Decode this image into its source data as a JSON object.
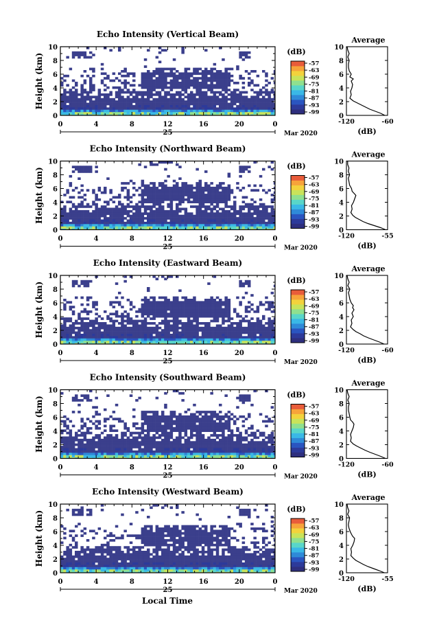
{
  "date_label": "Mar 2020",
  "xlabel": "Local Time",
  "colorbar_unit": "(dB)",
  "profile_title": "Average",
  "profile_unit": "(dB)",
  "ylabel": "Height (km)",
  "colors": {
    "echo_fill": "#3b3f8c",
    "background": "#ffffff",
    "colormap": [
      "#2e2f7e",
      "#2d3a9a",
      "#2a55c0",
      "#2f8ad8",
      "#3ab8e6",
      "#59d6c9",
      "#8fe08f",
      "#c9e35a",
      "#f3d23c",
      "#f7a33a",
      "#e85c3a"
    ]
  },
  "chart_data": [
    {
      "type": "heatmap",
      "title": "Echo Intensity (Vertical Beam)",
      "x_ticks": [
        "0",
        "4",
        "8",
        "12",
        "16",
        "20",
        "0"
      ],
      "day_label": "25",
      "xlim": [
        0,
        24
      ],
      "ylim": [
        0,
        10
      ],
      "y_ticks": [
        "0",
        "2",
        "4",
        "6",
        "8",
        "10"
      ],
      "colorbar_ticks": [
        "-57",
        "-63",
        "-69",
        "-75",
        "-81",
        "-87",
        "-93",
        "-99"
      ],
      "profile": {
        "title": "Average",
        "xlim": [
          -120,
          -60
        ],
        "x_ticks": [
          "-120",
          "-60"
        ],
        "y_ticks": [
          "0",
          "2",
          "4",
          "6",
          "8",
          "10"
        ],
        "heights": [
          0,
          0.3,
          0.6,
          0.9,
          1.2,
          1.5,
          1.8,
          2.1,
          2.5,
          3,
          3.5,
          4,
          4.5,
          5,
          5.3,
          5.6,
          6,
          6.5,
          7,
          7.5,
          8,
          8.5,
          9,
          9.5,
          10
        ],
        "values": [
          -64,
          -70,
          -78,
          -86,
          -92,
          -98,
          -104,
          -110,
          -115,
          -113,
          -114,
          -112,
          -111,
          -113,
          -110,
          -115,
          -113,
          -116,
          -117,
          -117,
          -116,
          -118,
          -116,
          -118,
          -119
        ]
      }
    },
    {
      "type": "heatmap",
      "title": "Echo Intensity (Northward Beam)",
      "x_ticks": [
        "0",
        "4",
        "8",
        "12",
        "16",
        "20",
        "0"
      ],
      "day_label": "25",
      "xlim": [
        0,
        24
      ],
      "ylim": [
        0,
        10
      ],
      "y_ticks": [
        "0",
        "2",
        "4",
        "6",
        "8",
        "10"
      ],
      "colorbar_ticks": [
        "-57",
        "-63",
        "-69",
        "-75",
        "-81",
        "-87",
        "-93",
        "-99"
      ],
      "profile": {
        "title": "Average",
        "xlim": [
          -120,
          -55
        ],
        "x_ticks": [
          "-120",
          "-55"
        ],
        "y_ticks": [
          "0",
          "2",
          "4",
          "6",
          "8",
          "10"
        ],
        "heights": [
          0,
          0.3,
          0.6,
          0.9,
          1.2,
          1.5,
          1.8,
          2.1,
          2.5,
          3,
          3.5,
          4,
          4.5,
          5,
          5.3,
          5.6,
          6,
          6.5,
          7,
          7.5,
          8,
          8.5,
          9,
          9.5,
          10
        ],
        "values": [
          -58,
          -66,
          -76,
          -86,
          -94,
          -100,
          -106,
          -110,
          -113,
          -111,
          -112,
          -109,
          -107,
          -105,
          -108,
          -111,
          -112,
          -115,
          -116,
          -117,
          -115,
          -117,
          -116,
          -118,
          -118
        ]
      }
    },
    {
      "type": "heatmap",
      "title": "Echo Intensity (Eastward Beam)",
      "x_ticks": [
        "0",
        "4",
        "8",
        "12",
        "16",
        "20",
        "0"
      ],
      "day_label": "25",
      "xlim": [
        0,
        24
      ],
      "ylim": [
        0,
        10
      ],
      "y_ticks": [
        "0",
        "2",
        "4",
        "6",
        "8",
        "10"
      ],
      "colorbar_ticks": [
        "-57",
        "-63",
        "-69",
        "-75",
        "-81",
        "-87",
        "-93",
        "-99"
      ],
      "profile": {
        "title": "Average",
        "xlim": [
          -120,
          -60
        ],
        "x_ticks": [
          "-120",
          "-60"
        ],
        "y_ticks": [
          "0",
          "2",
          "4",
          "6",
          "8",
          "10"
        ],
        "heights": [
          0,
          0.3,
          0.6,
          0.9,
          1.2,
          1.5,
          1.8,
          2.1,
          2.5,
          3,
          3.5,
          4,
          4.5,
          5,
          5.3,
          5.6,
          6,
          6.5,
          7,
          7.5,
          8,
          8.5,
          9,
          9.5,
          10
        ],
        "values": [
          -65,
          -72,
          -80,
          -88,
          -95,
          -100,
          -106,
          -110,
          -114,
          -112,
          -113,
          -110,
          -112,
          -109,
          -111,
          -110,
          -113,
          -115,
          -116,
          -117,
          -115,
          -118,
          -116,
          -118,
          -119
        ]
      }
    },
    {
      "type": "heatmap",
      "title": "Echo Intensity (Southward Beam)",
      "x_ticks": [
        "0",
        "4",
        "8",
        "12",
        "16",
        "20",
        "0"
      ],
      "day_label": "25",
      "xlim": [
        0,
        24
      ],
      "ylim": [
        0,
        10
      ],
      "y_ticks": [
        "0",
        "2",
        "4",
        "6",
        "8",
        "10"
      ],
      "colorbar_ticks": [
        "-57",
        "-63",
        "-69",
        "-75",
        "-81",
        "-87",
        "-93",
        "-99"
      ],
      "profile": {
        "title": "Average",
        "xlim": [
          -120,
          -60
        ],
        "x_ticks": [
          "-120",
          "-60"
        ],
        "y_ticks": [
          "0",
          "2",
          "4",
          "6",
          "8",
          "10"
        ],
        "heights": [
          0,
          0.3,
          0.6,
          0.9,
          1.2,
          1.5,
          1.8,
          2.1,
          2.5,
          3,
          3.5,
          4,
          4.5,
          5,
          5.3,
          5.6,
          6,
          6.5,
          7,
          7.5,
          8,
          8.5,
          9,
          9.5,
          10
        ],
        "values": [
          -63,
          -70,
          -78,
          -86,
          -93,
          -99,
          -105,
          -110,
          -114,
          -113,
          -114,
          -112,
          -110,
          -109,
          -111,
          -114,
          -115,
          -116,
          -117,
          -117,
          -116,
          -118,
          -116,
          -118,
          -119
        ]
      }
    },
    {
      "type": "heatmap",
      "title": "Echo Intensity (Westward Beam)",
      "x_ticks": [
        "0",
        "4",
        "8",
        "12",
        "16",
        "20",
        "0"
      ],
      "day_label": "25",
      "xlim": [
        0,
        24
      ],
      "ylim": [
        0,
        10
      ],
      "y_ticks": [
        "0",
        "2",
        "4",
        "6",
        "8",
        "10"
      ],
      "colorbar_ticks": [
        "-57",
        "-63",
        "-69",
        "-75",
        "-81",
        "-87",
        "-93",
        "-99"
      ],
      "profile": {
        "title": "Average",
        "xlim": [
          -120,
          -55
        ],
        "x_ticks": [
          "-120",
          "-55"
        ],
        "y_ticks": [
          "0",
          "2",
          "4",
          "6",
          "8",
          "10"
        ],
        "heights": [
          0,
          0.3,
          0.6,
          0.9,
          1.2,
          1.5,
          1.8,
          2.1,
          2.5,
          3,
          3.5,
          4,
          4.5,
          5,
          5.3,
          5.6,
          6,
          6.5,
          7,
          7.5,
          8,
          8.5,
          9,
          9.5,
          10
        ],
        "values": [
          -60,
          -68,
          -77,
          -86,
          -93,
          -99,
          -105,
          -109,
          -113,
          -112,
          -113,
          -110,
          -108,
          -107,
          -110,
          -112,
          -114,
          -116,
          -117,
          -116,
          -115,
          -118,
          -116,
          -118,
          -119
        ]
      }
    }
  ]
}
